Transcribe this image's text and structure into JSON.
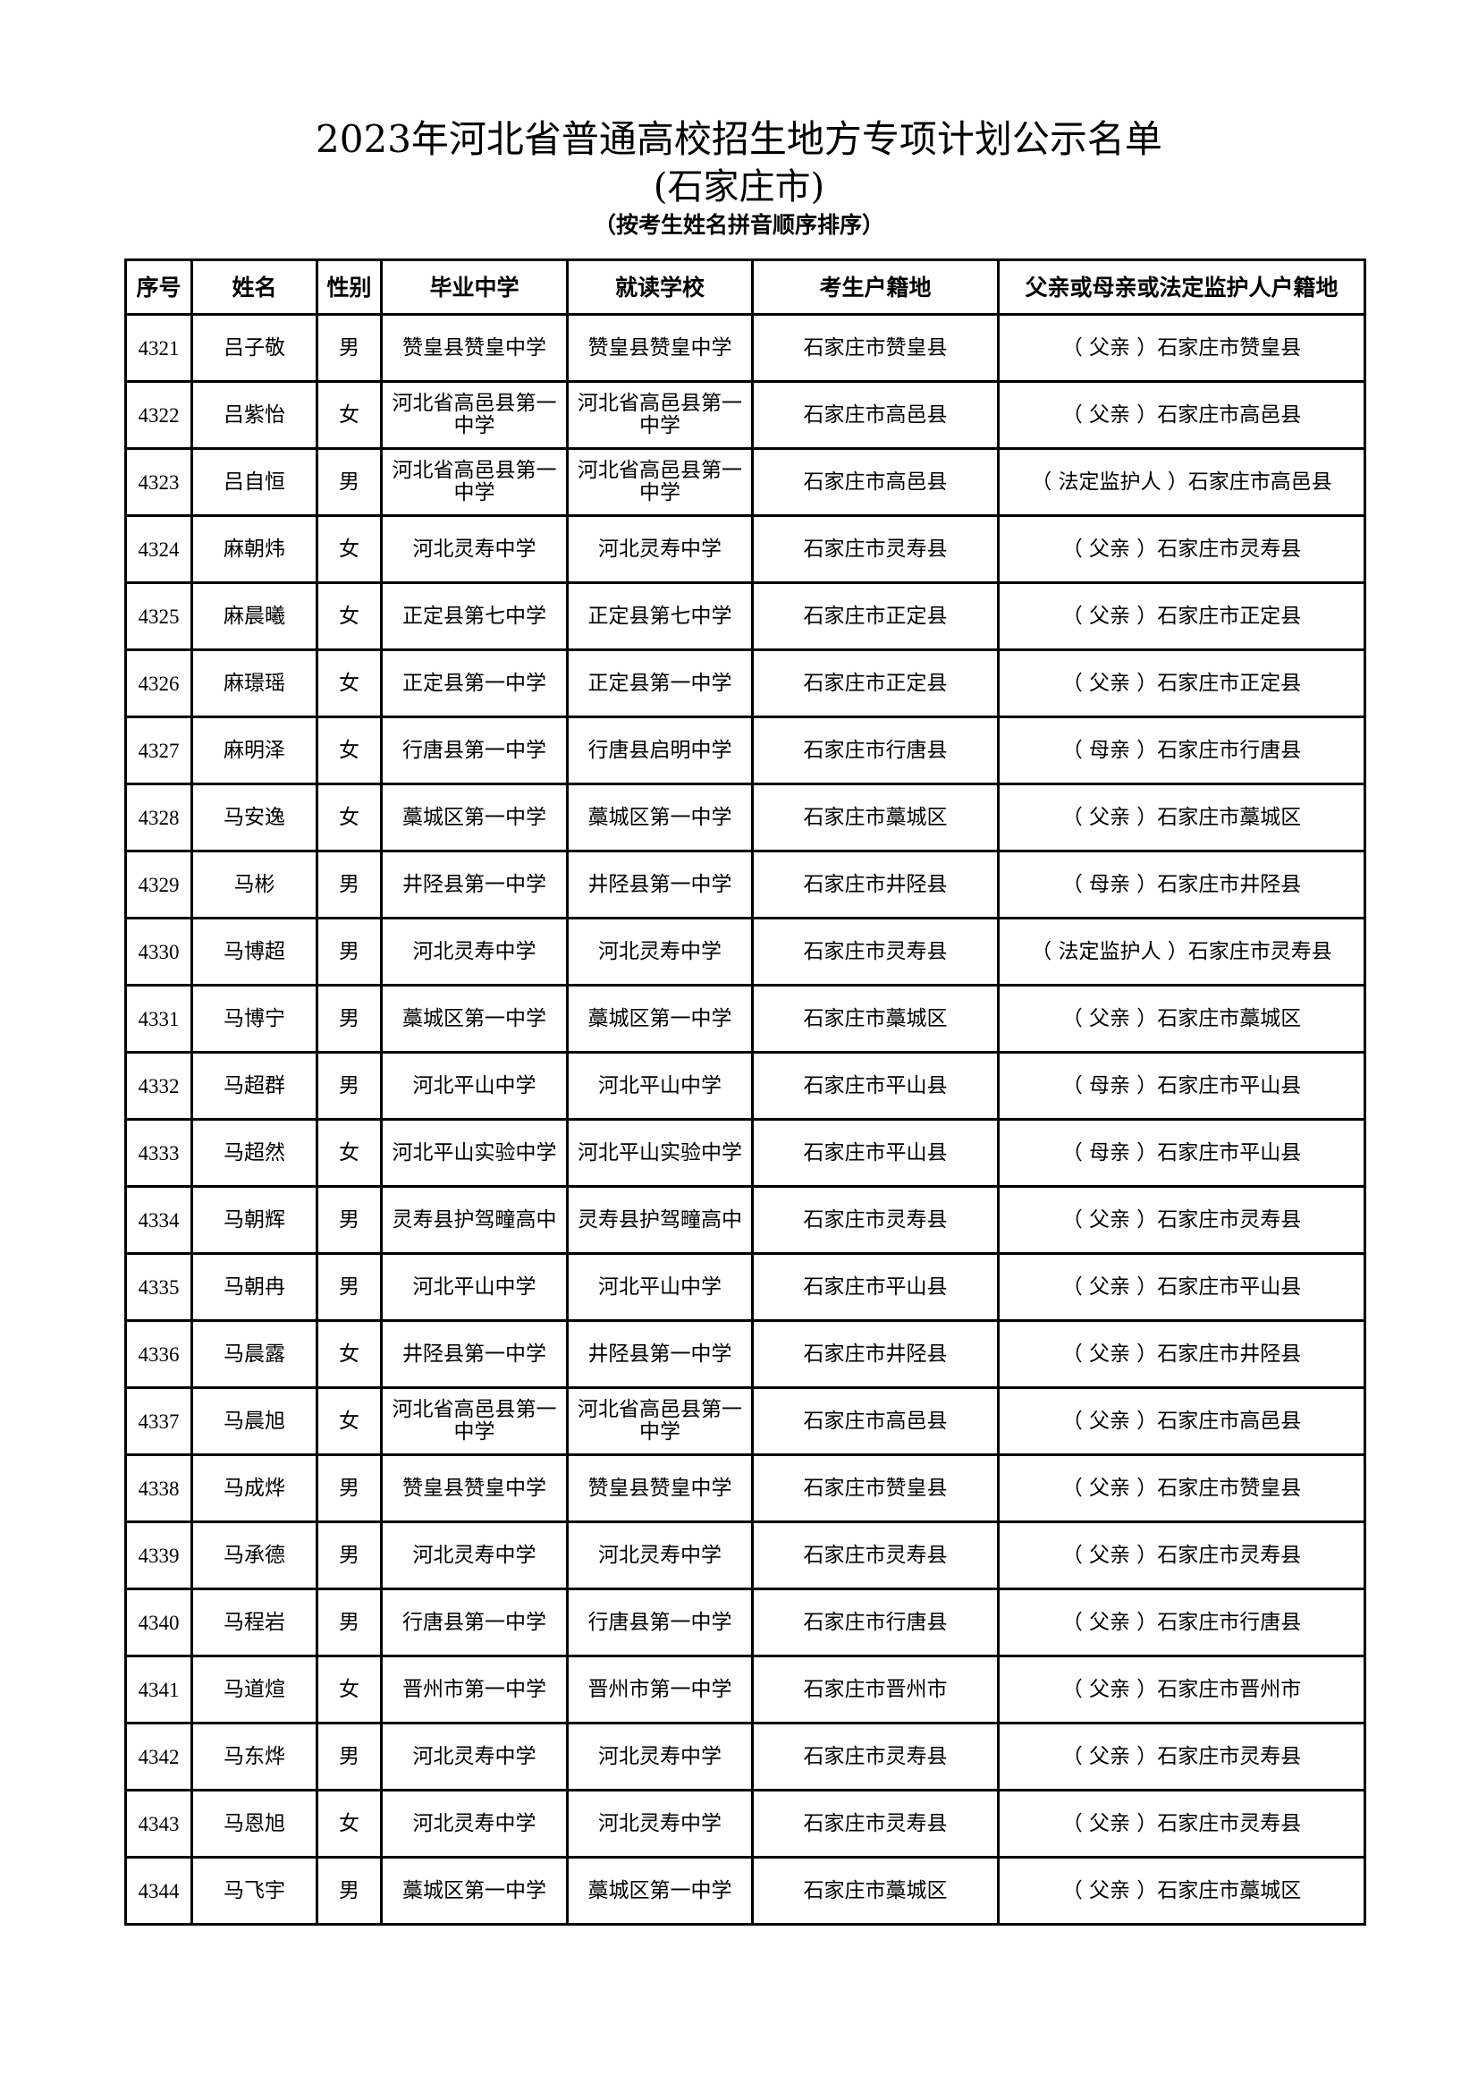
{
  "title": "2023年河北省普通高校招生地方专项计划公示名单",
  "subtitle": "(石家庄市)",
  "note": "（按考生姓名拼音顺序排序）",
  "table": {
    "headers": [
      "序号",
      "姓名",
      "性别",
      "毕业中学",
      "就读学校",
      "考生户籍地",
      "父亲或母亲或法定监护人户籍地"
    ],
    "rows": [
      [
        "4321",
        "吕子敬",
        "男",
        "赞皇县赞皇中学",
        "赞皇县赞皇中学",
        "石家庄市赞皇县",
        "（ 父亲 ）石家庄市赞皇县"
      ],
      [
        "4322",
        "吕紫怡",
        "女",
        "河北省高邑县第一中学",
        "河北省高邑县第一中学",
        "石家庄市高邑县",
        "（ 父亲 ）石家庄市高邑县"
      ],
      [
        "4323",
        "吕自恒",
        "男",
        "河北省高邑县第一中学",
        "河北省高邑县第一中学",
        "石家庄市高邑县",
        "（ 法定监护人 ）石家庄市高邑县"
      ],
      [
        "4324",
        "麻朝炜",
        "女",
        "河北灵寿中学",
        "河北灵寿中学",
        "石家庄市灵寿县",
        "（ 父亲 ）石家庄市灵寿县"
      ],
      [
        "4325",
        "麻晨曦",
        "女",
        "正定县第七中学",
        "正定县第七中学",
        "石家庄市正定县",
        "（ 父亲 ）石家庄市正定县"
      ],
      [
        "4326",
        "麻璟瑶",
        "女",
        "正定县第一中学",
        "正定县第一中学",
        "石家庄市正定县",
        "（ 父亲 ）石家庄市正定县"
      ],
      [
        "4327",
        "麻明泽",
        "女",
        "行唐县第一中学",
        "行唐县启明中学",
        "石家庄市行唐县",
        "（ 母亲 ）石家庄市行唐县"
      ],
      [
        "4328",
        "马安逸",
        "女",
        "藁城区第一中学",
        "藁城区第一中学",
        "石家庄市藁城区",
        "（ 父亲 ）石家庄市藁城区"
      ],
      [
        "4329",
        "马彬",
        "男",
        "井陉县第一中学",
        "井陉县第一中学",
        "石家庄市井陉县",
        "（ 母亲 ）石家庄市井陉县"
      ],
      [
        "4330",
        "马博超",
        "男",
        "河北灵寿中学",
        "河北灵寿中学",
        "石家庄市灵寿县",
        "（ 法定监护人 ）石家庄市灵寿县"
      ],
      [
        "4331",
        "马博宁",
        "男",
        "藁城区第一中学",
        "藁城区第一中学",
        "石家庄市藁城区",
        "（ 父亲 ）石家庄市藁城区"
      ],
      [
        "4332",
        "马超群",
        "男",
        "河北平山中学",
        "河北平山中学",
        "石家庄市平山县",
        "（ 母亲 ）石家庄市平山县"
      ],
      [
        "4333",
        "马超然",
        "女",
        "河北平山实验中学",
        "河北平山实验中学",
        "石家庄市平山县",
        "（ 母亲 ）石家庄市平山县"
      ],
      [
        "4334",
        "马朝辉",
        "男",
        "灵寿县护驾疃高中",
        "灵寿县护驾疃高中",
        "石家庄市灵寿县",
        "（ 父亲 ）石家庄市灵寿县"
      ],
      [
        "4335",
        "马朝冉",
        "男",
        "河北平山中学",
        "河北平山中学",
        "石家庄市平山县",
        "（ 父亲 ）石家庄市平山县"
      ],
      [
        "4336",
        "马晨露",
        "女",
        "井陉县第一中学",
        "井陉县第一中学",
        "石家庄市井陉县",
        "（ 父亲 ）石家庄市井陉县"
      ],
      [
        "4337",
        "马晨旭",
        "女",
        "河北省高邑县第一中学",
        "河北省高邑县第一中学",
        "石家庄市高邑县",
        "（ 父亲 ）石家庄市高邑县"
      ],
      [
        "4338",
        "马成烨",
        "男",
        "赞皇县赞皇中学",
        "赞皇县赞皇中学",
        "石家庄市赞皇县",
        "（ 父亲 ）石家庄市赞皇县"
      ],
      [
        "4339",
        "马承德",
        "男",
        "河北灵寿中学",
        "河北灵寿中学",
        "石家庄市灵寿县",
        "（ 父亲 ）石家庄市灵寿县"
      ],
      [
        "4340",
        "马程岩",
        "男",
        "行唐县第一中学",
        "行唐县第一中学",
        "石家庄市行唐县",
        "（ 父亲 ）石家庄市行唐县"
      ],
      [
        "4341",
        "马道煊",
        "女",
        "晋州市第一中学",
        "晋州市第一中学",
        "石家庄市晋州市",
        "（ 父亲 ）石家庄市晋州市"
      ],
      [
        "4342",
        "马东烨",
        "男",
        "河北灵寿中学",
        "河北灵寿中学",
        "石家庄市灵寿县",
        "（ 父亲 ）石家庄市灵寿县"
      ],
      [
        "4343",
        "马恩旭",
        "女",
        "河北灵寿中学",
        "河北灵寿中学",
        "石家庄市灵寿县",
        "（ 父亲 ）石家庄市灵寿县"
      ],
      [
        "4344",
        "马飞宇",
        "男",
        "藁城区第一中学",
        "藁城区第一中学",
        "石家庄市藁城区",
        "（ 父亲 ）石家庄市藁城区"
      ]
    ]
  }
}
